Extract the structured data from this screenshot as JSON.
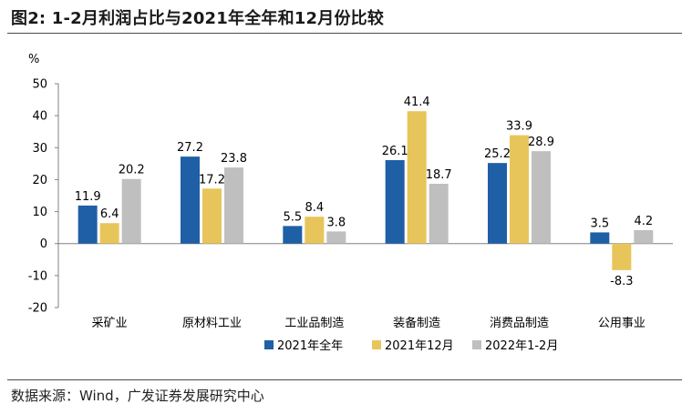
{
  "figure": {
    "title": "图2:  1-2月利润占比与2021年全年和12月份比较",
    "source": "数据来源：Wind，广发证券发展研究中心"
  },
  "colors": {
    "series": [
      "#1f5fa6",
      "#e8c55a",
      "#bfbfbf"
    ],
    "axis": "#808080",
    "rule": "#4a4a4a"
  },
  "chart_data": {
    "type": "bar",
    "unit_label": "%",
    "categories": [
      "采矿业",
      "原材料工业",
      "工业品制造",
      "装备制造",
      "消费品制造",
      "公用事业"
    ],
    "series": [
      {
        "name": "2021年全年",
        "values": [
          11.9,
          27.2,
          5.5,
          26.1,
          25.2,
          3.5
        ]
      },
      {
        "name": "2021年12月",
        "values": [
          6.4,
          17.2,
          8.4,
          41.4,
          33.9,
          -8.3
        ]
      },
      {
        "name": "2022年1-2月",
        "values": [
          20.2,
          23.8,
          3.8,
          18.7,
          28.9,
          4.2
        ]
      }
    ],
    "ylim": [
      -20,
      50
    ],
    "yticks": [
      -20,
      -10,
      0,
      10,
      20,
      30,
      40,
      50
    ],
    "grid": false,
    "legend_position": "bottom"
  }
}
